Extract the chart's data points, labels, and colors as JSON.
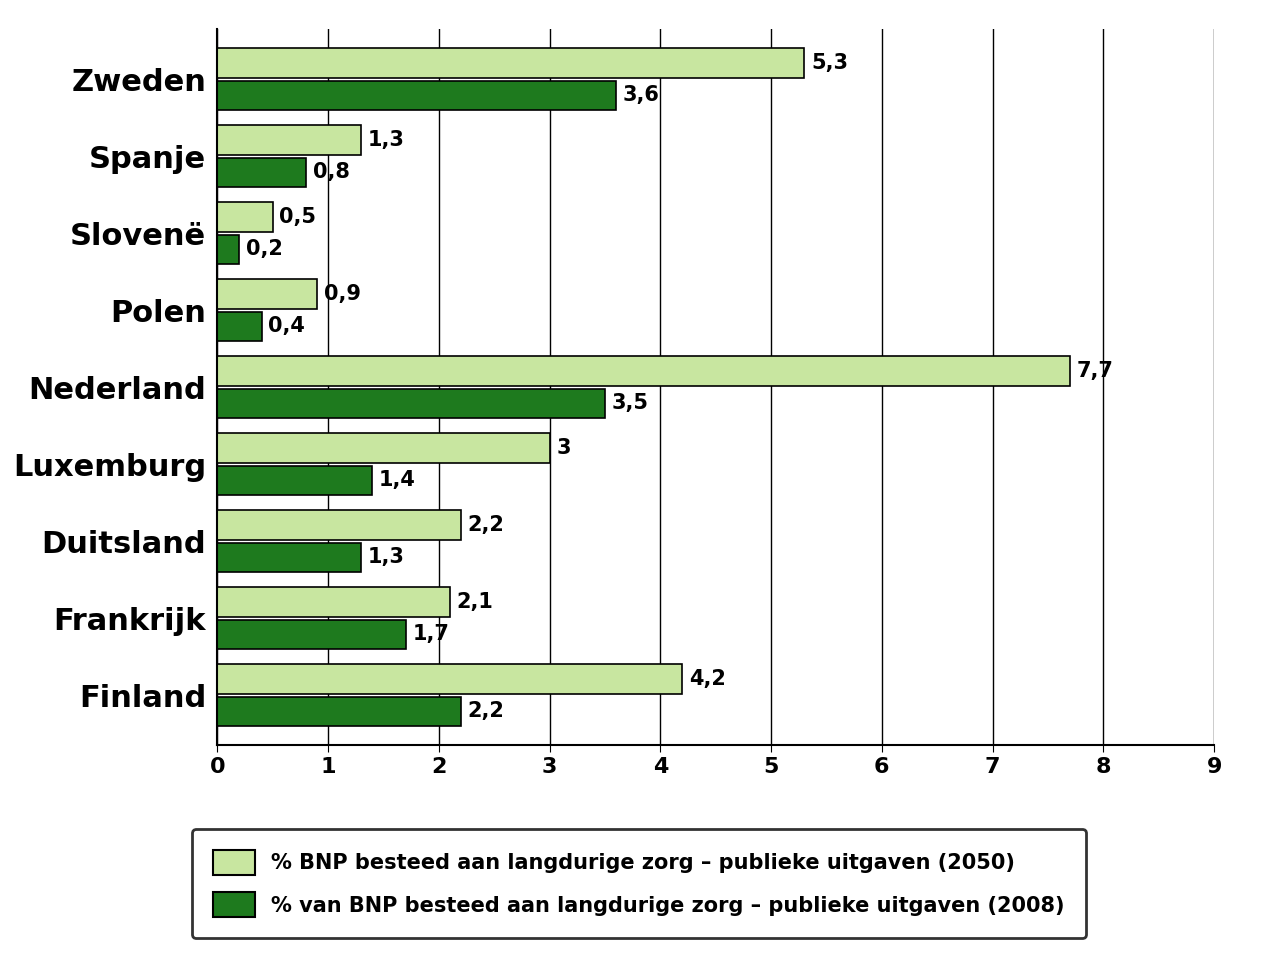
{
  "countries": [
    "Finland",
    "Frankrijk",
    "Duitsland",
    "Luxemburg",
    "Nederland",
    "Polen",
    "Slovenë",
    "Spanje",
    "Zweden"
  ],
  "values_2050": [
    4.2,
    2.1,
    2.2,
    3.0,
    7.7,
    0.9,
    0.5,
    1.3,
    5.3
  ],
  "values_2008": [
    2.2,
    1.7,
    1.3,
    1.4,
    3.5,
    0.4,
    0.2,
    0.8,
    3.6
  ],
  "labels_2050": [
    "4,2",
    "2,1",
    "2,2",
    "3",
    "7,7",
    "0,9",
    "0,5",
    "1,3",
    "5,3"
  ],
  "labels_2008": [
    "2,2",
    "1,7",
    "1,3",
    "1,4",
    "3,5",
    "0,4",
    "0,2",
    "0,8",
    "3,6"
  ],
  "color_2050": "#c8e6a0",
  "color_2008": "#1e7a1e",
  "bar_edge_color": "#000000",
  "xlim": [
    0,
    9
  ],
  "xticks": [
    0,
    1,
    2,
    3,
    4,
    5,
    6,
    7,
    8,
    9
  ],
  "bar_height": 0.38,
  "bar_gap": 0.04,
  "label_2050": "% BNP besteed aan langdurige zorg – publieke uitgaven (2050)",
  "label_2008": "% van BNP besteed aan langdurige zorg – publieke uitgaven (2008)",
  "background_color": "#ffffff",
  "grid_color": "#000000",
  "label_fontsize": 15,
  "tick_fontsize": 16,
  "country_fontsize": 22,
  "value_fontsize": 15
}
